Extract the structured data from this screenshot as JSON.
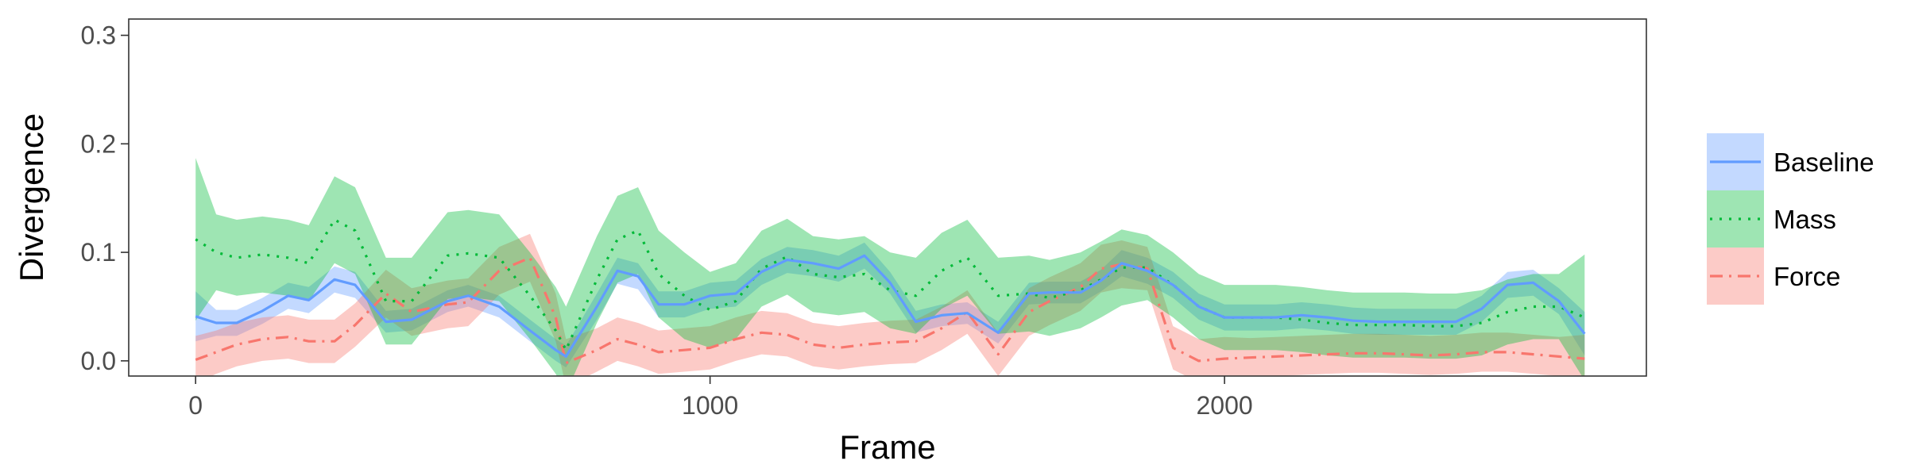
{
  "chart_data": {
    "type": "line",
    "title": "",
    "xlabel": "Frame",
    "ylabel": "Divergence",
    "xlim": [
      -130,
      2820
    ],
    "ylim": [
      -0.014,
      0.315
    ],
    "x_ticks": [
      0,
      1000,
      2000
    ],
    "x_tick_labels": [
      "0",
      "1000",
      "2000"
    ],
    "y_ticks": [
      0.0,
      0.1,
      0.2,
      0.3
    ],
    "y_tick_labels": [
      "0.0",
      "0.1",
      "0.2",
      "0.3"
    ],
    "grid": false,
    "legend_position": "right",
    "series": [
      {
        "name": "Baseline",
        "color": "#619cff",
        "band_color": "#619cff",
        "dash": "solid",
        "points": [
          [
            0,
            0.041
          ],
          [
            40,
            0.035
          ],
          [
            80,
            0.035
          ],
          [
            130,
            0.046
          ],
          [
            180,
            0.06
          ],
          [
            220,
            0.056
          ],
          [
            270,
            0.075
          ],
          [
            310,
            0.07
          ],
          [
            370,
            0.036
          ],
          [
            420,
            0.038
          ],
          [
            490,
            0.055
          ],
          [
            530,
            0.06
          ],
          [
            590,
            0.05
          ],
          [
            650,
            0.028
          ],
          [
            700,
            0.01
          ],
          [
            720,
            0.004
          ],
          [
            780,
            0.05
          ],
          [
            820,
            0.083
          ],
          [
            860,
            0.078
          ],
          [
            900,
            0.052
          ],
          [
            950,
            0.052
          ],
          [
            1000,
            0.06
          ],
          [
            1050,
            0.062
          ],
          [
            1100,
            0.082
          ],
          [
            1150,
            0.093
          ],
          [
            1200,
            0.09
          ],
          [
            1250,
            0.085
          ],
          [
            1300,
            0.097
          ],
          [
            1350,
            0.072
          ],
          [
            1400,
            0.036
          ],
          [
            1450,
            0.042
          ],
          [
            1500,
            0.044
          ],
          [
            1560,
            0.026
          ],
          [
            1620,
            0.062
          ],
          [
            1660,
            0.063
          ],
          [
            1720,
            0.063
          ],
          [
            1760,
            0.074
          ],
          [
            1800,
            0.09
          ],
          [
            1850,
            0.083
          ],
          [
            1900,
            0.07
          ],
          [
            1950,
            0.05
          ],
          [
            2000,
            0.04
          ],
          [
            2050,
            0.04
          ],
          [
            2100,
            0.04
          ],
          [
            2150,
            0.042
          ],
          [
            2200,
            0.04
          ],
          [
            2250,
            0.037
          ],
          [
            2300,
            0.036
          ],
          [
            2350,
            0.036
          ],
          [
            2400,
            0.036
          ],
          [
            2450,
            0.036
          ],
          [
            2500,
            0.048
          ],
          [
            2550,
            0.07
          ],
          [
            2600,
            0.072
          ],
          [
            2650,
            0.055
          ],
          [
            2700,
            0.025
          ]
        ],
        "band_halfwidth": [
          0.023,
          0.012,
          0.012,
          0.012,
          0.012,
          0.012,
          0.012,
          0.012,
          0.01,
          0.01,
          0.01,
          0.01,
          0.01,
          0.01,
          0.01,
          0.01,
          0.012,
          0.012,
          0.012,
          0.012,
          0.012,
          0.012,
          0.012,
          0.012,
          0.012,
          0.012,
          0.012,
          0.012,
          0.01,
          0.01,
          0.01,
          0.01,
          0.01,
          0.01,
          0.01,
          0.01,
          0.01,
          0.012,
          0.012,
          0.012,
          0.012,
          0.012,
          0.012,
          0.012,
          0.012,
          0.012,
          0.012,
          0.012,
          0.012,
          0.012,
          0.012,
          0.012,
          0.012,
          0.012,
          0.012,
          0.02
        ]
      },
      {
        "name": "Mass",
        "color": "#00ba38",
        "band_color": "#00ba38",
        "dash": "dotted",
        "points": [
          [
            0,
            0.112
          ],
          [
            40,
            0.1
          ],
          [
            80,
            0.095
          ],
          [
            130,
            0.098
          ],
          [
            180,
            0.095
          ],
          [
            220,
            0.09
          ],
          [
            270,
            0.13
          ],
          [
            310,
            0.12
          ],
          [
            370,
            0.055
          ],
          [
            420,
            0.055
          ],
          [
            490,
            0.097
          ],
          [
            530,
            0.099
          ],
          [
            590,
            0.095
          ],
          [
            650,
            0.06
          ],
          [
            700,
            0.028
          ],
          [
            720,
            0.01
          ],
          [
            780,
            0.075
          ],
          [
            820,
            0.112
          ],
          [
            860,
            0.12
          ],
          [
            900,
            0.08
          ],
          [
            950,
            0.06
          ],
          [
            1000,
            0.047
          ],
          [
            1050,
            0.055
          ],
          [
            1100,
            0.085
          ],
          [
            1150,
            0.096
          ],
          [
            1200,
            0.08
          ],
          [
            1250,
            0.077
          ],
          [
            1300,
            0.08
          ],
          [
            1350,
            0.065
          ],
          [
            1400,
            0.06
          ],
          [
            1450,
            0.083
          ],
          [
            1500,
            0.095
          ],
          [
            1560,
            0.06
          ],
          [
            1620,
            0.062
          ],
          [
            1660,
            0.058
          ],
          [
            1720,
            0.065
          ],
          [
            1760,
            0.075
          ],
          [
            1800,
            0.086
          ],
          [
            1850,
            0.086
          ],
          [
            1900,
            0.07
          ],
          [
            1950,
            0.05
          ],
          [
            2000,
            0.04
          ],
          [
            2050,
            0.04
          ],
          [
            2100,
            0.04
          ],
          [
            2150,
            0.038
          ],
          [
            2200,
            0.035
          ],
          [
            2250,
            0.033
          ],
          [
            2300,
            0.033
          ],
          [
            2350,
            0.033
          ],
          [
            2400,
            0.032
          ],
          [
            2450,
            0.032
          ],
          [
            2500,
            0.035
          ],
          [
            2550,
            0.045
          ],
          [
            2600,
            0.05
          ],
          [
            2650,
            0.05
          ],
          [
            2700,
            0.04
          ]
        ],
        "band_halfwidth": [
          0.075,
          0.035,
          0.035,
          0.035,
          0.035,
          0.035,
          0.04,
          0.04,
          0.04,
          0.04,
          0.04,
          0.04,
          0.04,
          0.04,
          0.04,
          0.04,
          0.04,
          0.04,
          0.04,
          0.04,
          0.04,
          0.035,
          0.035,
          0.035,
          0.035,
          0.035,
          0.035,
          0.035,
          0.035,
          0.035,
          0.035,
          0.035,
          0.035,
          0.035,
          0.035,
          0.035,
          0.035,
          0.035,
          0.03,
          0.03,
          0.03,
          0.03,
          0.03,
          0.03,
          0.03,
          0.03,
          0.03,
          0.03,
          0.03,
          0.03,
          0.03,
          0.03,
          0.03,
          0.03,
          0.03,
          0.058
        ]
      },
      {
        "name": "Force",
        "color": "#f8766d",
        "band_color": "#f8766d",
        "dash": "dashdot",
        "points": [
          [
            0,
            0.001
          ],
          [
            40,
            0.008
          ],
          [
            80,
            0.015
          ],
          [
            130,
            0.02
          ],
          [
            180,
            0.022
          ],
          [
            220,
            0.018
          ],
          [
            270,
            0.018
          ],
          [
            310,
            0.033
          ],
          [
            370,
            0.062
          ],
          [
            420,
            0.045
          ],
          [
            490,
            0.052
          ],
          [
            530,
            0.054
          ],
          [
            590,
            0.083
          ],
          [
            650,
            0.095
          ],
          [
            700,
            0.04
          ],
          [
            720,
            -0.002
          ],
          [
            780,
            0.01
          ],
          [
            820,
            0.02
          ],
          [
            860,
            0.015
          ],
          [
            900,
            0.008
          ],
          [
            950,
            0.01
          ],
          [
            1000,
            0.012
          ],
          [
            1050,
            0.02
          ],
          [
            1100,
            0.026
          ],
          [
            1150,
            0.024
          ],
          [
            1200,
            0.015
          ],
          [
            1250,
            0.012
          ],
          [
            1300,
            0.015
          ],
          [
            1350,
            0.017
          ],
          [
            1400,
            0.018
          ],
          [
            1450,
            0.03
          ],
          [
            1500,
            0.045
          ],
          [
            1560,
            0.006
          ],
          [
            1620,
            0.045
          ],
          [
            1660,
            0.055
          ],
          [
            1720,
            0.068
          ],
          [
            1760,
            0.085
          ],
          [
            1800,
            0.089
          ],
          [
            1850,
            0.085
          ],
          [
            1900,
            0.012
          ],
          [
            1950,
            0.0
          ],
          [
            2000,
            0.002
          ],
          [
            2050,
            0.003
          ],
          [
            2100,
            0.004
          ],
          [
            2150,
            0.005
          ],
          [
            2200,
            0.006
          ],
          [
            2250,
            0.007
          ],
          [
            2300,
            0.007
          ],
          [
            2350,
            0.006
          ],
          [
            2400,
            0.005
          ],
          [
            2450,
            0.006
          ],
          [
            2500,
            0.008
          ],
          [
            2550,
            0.008
          ],
          [
            2600,
            0.006
          ],
          [
            2650,
            0.004
          ],
          [
            2700,
            0.002
          ]
        ],
        "band_halfwidth": [
          0.022,
          0.02,
          0.02,
          0.02,
          0.02,
          0.02,
          0.02,
          0.02,
          0.022,
          0.022,
          0.022,
          0.022,
          0.022,
          0.022,
          0.022,
          0.022,
          0.02,
          0.02,
          0.02,
          0.02,
          0.02,
          0.02,
          0.02,
          0.02,
          0.02,
          0.02,
          0.02,
          0.02,
          0.02,
          0.02,
          0.02,
          0.02,
          0.02,
          0.022,
          0.022,
          0.022,
          0.022,
          0.022,
          0.02,
          0.02,
          0.02,
          0.02,
          0.018,
          0.018,
          0.018,
          0.018,
          0.018,
          0.018,
          0.018,
          0.018,
          0.018,
          0.018,
          0.018,
          0.018,
          0.018,
          0.022
        ]
      }
    ]
  }
}
